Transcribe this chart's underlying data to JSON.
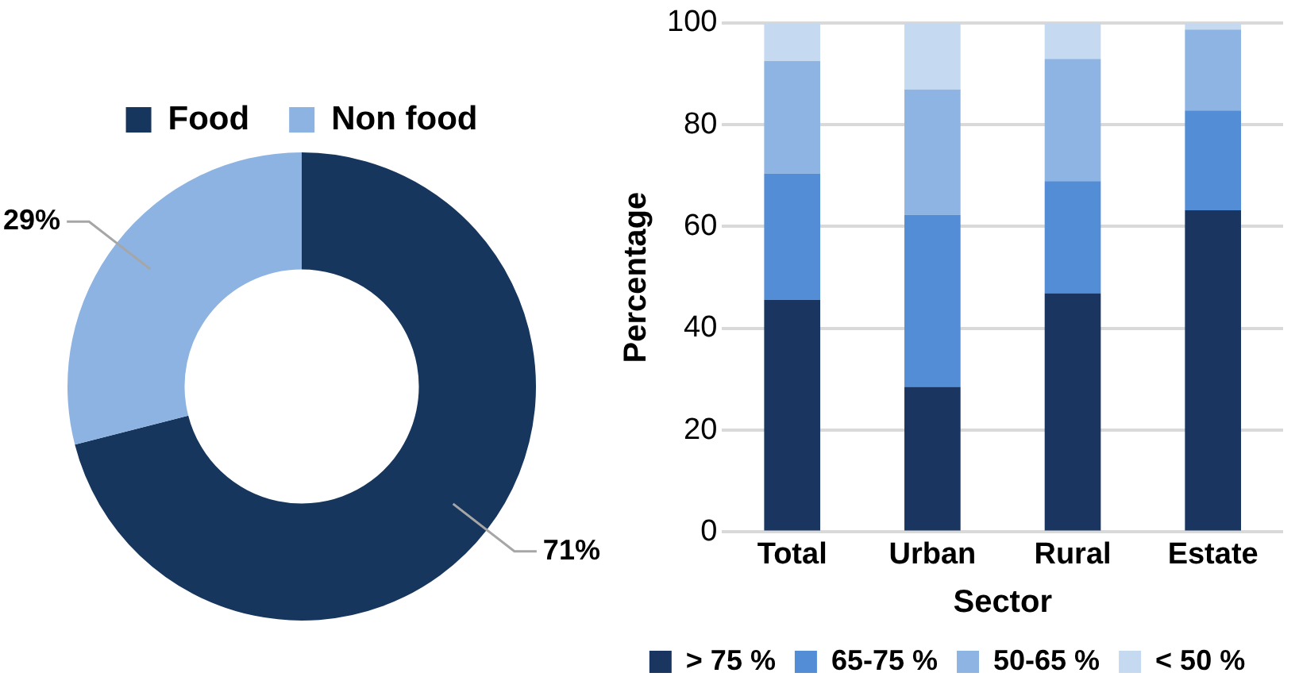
{
  "chart_data": [
    {
      "type": "donut",
      "categories": [
        "Food",
        "Non food"
      ],
      "values": [
        71,
        29
      ],
      "colors": [
        "#17365d",
        "#8db3e2"
      ],
      "value_labels": [
        "71%",
        "29%"
      ],
      "legend": "top"
    },
    {
      "type": "bar",
      "stacked": true,
      "categories": [
        "Total",
        "Urban",
        "Rural",
        "Estate"
      ],
      "xlabel": "Sector",
      "ylabel": "Percentage",
      "ylim": [
        0,
        100
      ],
      "yticks": [
        0,
        20,
        40,
        60,
        80,
        100
      ],
      "grid": "y",
      "legend": "bottom",
      "series": [
        {
          "name": "> 75 %",
          "color": "#1a3660",
          "values": [
            45.6,
            28.5,
            46.9,
            63.2
          ]
        },
        {
          "name": "65-75 %",
          "color": "#538dd5",
          "values": [
            24.8,
            33.8,
            22.0,
            19.6
          ]
        },
        {
          "name": "50-65 %",
          "color": "#8db4e2",
          "values": [
            22.1,
            24.6,
            24.0,
            15.9
          ]
        },
        {
          "name": "< 50 %",
          "color": "#c5d9f1",
          "values": [
            7.5,
            13.1,
            7.1,
            1.3
          ]
        }
      ]
    }
  ]
}
